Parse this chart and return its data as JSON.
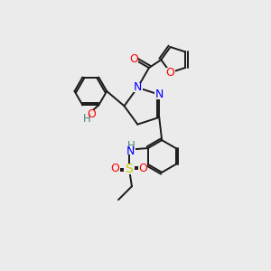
{
  "bg_color": "#ebebeb",
  "bond_color": "#1a1a1a",
  "atom_colors": {
    "N": "#0000ff",
    "O": "#ff0000",
    "S": "#cccc00",
    "H": "#4a8080",
    "C": "#1a1a1a"
  },
  "lw": 1.4,
  "fs": 9.0,
  "xlim": [
    0,
    10
  ],
  "ylim": [
    0,
    10
  ]
}
